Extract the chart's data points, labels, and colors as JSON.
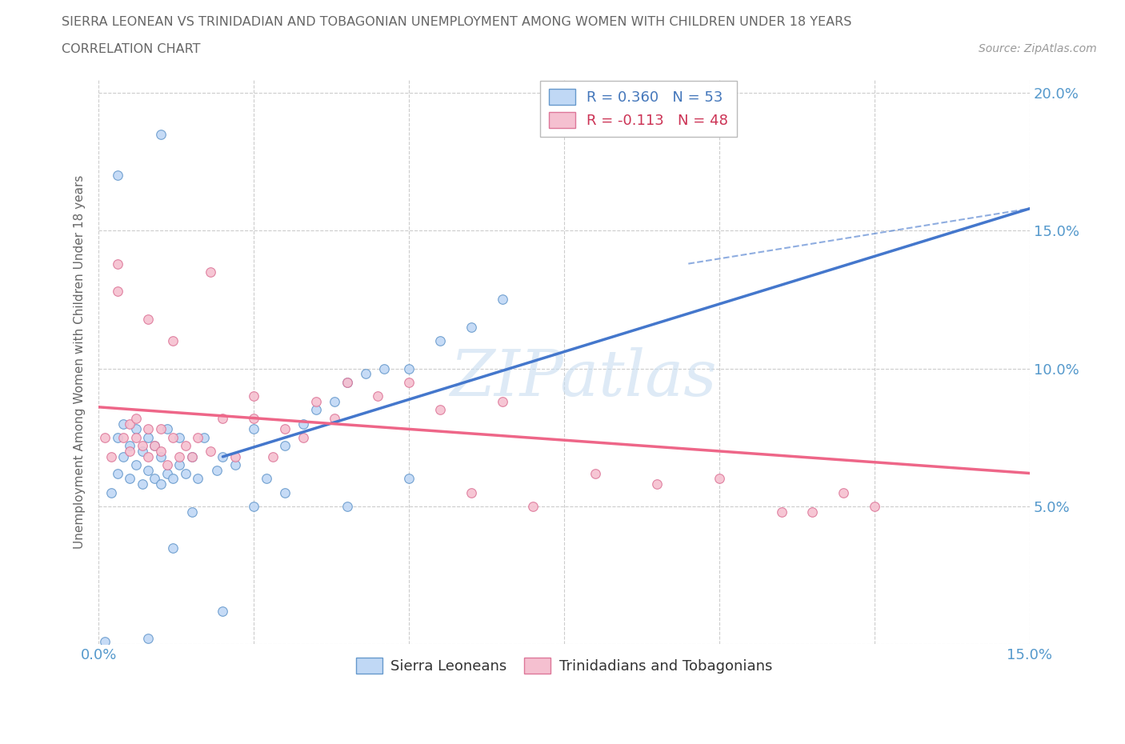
{
  "title": "SIERRA LEONEAN VS TRINIDADIAN AND TOBAGONIAN UNEMPLOYMENT AMONG WOMEN WITH CHILDREN UNDER 18 YEARS",
  "subtitle": "CORRELATION CHART",
  "source": "Source: ZipAtlas.com",
  "ylabel": "Unemployment Among Women with Children Under 18 years",
  "xlim": [
    0.0,
    0.15
  ],
  "ylim": [
    0.0,
    0.205
  ],
  "x_tick_positions": [
    0.0,
    0.025,
    0.05,
    0.075,
    0.1,
    0.125,
    0.15
  ],
  "y_tick_positions": [
    0.0,
    0.05,
    0.1,
    0.15,
    0.2
  ],
  "color_blue_fill": "#c0d8f5",
  "color_blue_edge": "#6699cc",
  "color_pink_fill": "#f5c0d0",
  "color_pink_edge": "#dd7799",
  "color_blue_line": "#4477cc",
  "color_pink_line": "#ee6688",
  "color_blue_text": "#4477bb",
  "color_pink_text": "#cc3355",
  "color_axis_text": "#5599cc",
  "watermark_color": "#c8ddf0",
  "grid_color": "#cccccc",
  "title_color": "#666666",
  "background": "#ffffff",
  "legend1_text": "R = 0.360   N = 53",
  "legend2_text": "R = -0.113   N = 48",
  "legend_bottom1": "Sierra Leoneans",
  "legend_bottom2": "Trinidadians and Tobagonians",
  "sierra_trend_x": [
    0.02,
    0.15
  ],
  "sierra_trend_y": [
    0.068,
    0.158
  ],
  "trini_trend_x": [
    0.0,
    0.15
  ],
  "trini_trend_y": [
    0.086,
    0.062
  ],
  "dashed_trend_x": [
    0.095,
    0.15
  ],
  "dashed_trend_y": [
    0.138,
    0.158
  ],
  "sierra_x": [
    0.001,
    0.002,
    0.003,
    0.003,
    0.004,
    0.004,
    0.005,
    0.005,
    0.006,
    0.006,
    0.007,
    0.007,
    0.008,
    0.008,
    0.009,
    0.009,
    0.01,
    0.01,
    0.011,
    0.011,
    0.012,
    0.013,
    0.013,
    0.014,
    0.015,
    0.016,
    0.017,
    0.019,
    0.02,
    0.022,
    0.025,
    0.027,
    0.03,
    0.033,
    0.035,
    0.038,
    0.04,
    0.043,
    0.046,
    0.05,
    0.055,
    0.06,
    0.065,
    0.01,
    0.003,
    0.008,
    0.012,
    0.015,
    0.02,
    0.025,
    0.03,
    0.04,
    0.05
  ],
  "sierra_y": [
    0.001,
    0.055,
    0.062,
    0.075,
    0.068,
    0.08,
    0.06,
    0.072,
    0.065,
    0.078,
    0.058,
    0.07,
    0.063,
    0.075,
    0.06,
    0.072,
    0.058,
    0.068,
    0.062,
    0.078,
    0.06,
    0.065,
    0.075,
    0.062,
    0.068,
    0.06,
    0.075,
    0.063,
    0.068,
    0.065,
    0.078,
    0.06,
    0.072,
    0.08,
    0.085,
    0.088,
    0.095,
    0.098,
    0.1,
    0.1,
    0.11,
    0.115,
    0.125,
    0.185,
    0.17,
    0.002,
    0.035,
    0.048,
    0.012,
    0.05,
    0.055,
    0.05,
    0.06
  ],
  "trini_x": [
    0.001,
    0.002,
    0.003,
    0.003,
    0.004,
    0.005,
    0.005,
    0.006,
    0.006,
    0.007,
    0.008,
    0.008,
    0.009,
    0.01,
    0.01,
    0.011,
    0.012,
    0.013,
    0.014,
    0.015,
    0.016,
    0.018,
    0.02,
    0.022,
    0.025,
    0.028,
    0.03,
    0.033,
    0.035,
    0.038,
    0.04,
    0.045,
    0.05,
    0.055,
    0.06,
    0.065,
    0.07,
    0.08,
    0.09,
    0.1,
    0.11,
    0.115,
    0.12,
    0.125,
    0.008,
    0.012,
    0.018,
    0.025
  ],
  "trini_y": [
    0.075,
    0.068,
    0.138,
    0.128,
    0.075,
    0.08,
    0.07,
    0.075,
    0.082,
    0.072,
    0.068,
    0.078,
    0.072,
    0.078,
    0.07,
    0.065,
    0.075,
    0.068,
    0.072,
    0.068,
    0.075,
    0.07,
    0.082,
    0.068,
    0.09,
    0.068,
    0.078,
    0.075,
    0.088,
    0.082,
    0.095,
    0.09,
    0.095,
    0.085,
    0.055,
    0.088,
    0.05,
    0.062,
    0.058,
    0.06,
    0.048,
    0.048,
    0.055,
    0.05,
    0.118,
    0.11,
    0.135,
    0.082
  ]
}
